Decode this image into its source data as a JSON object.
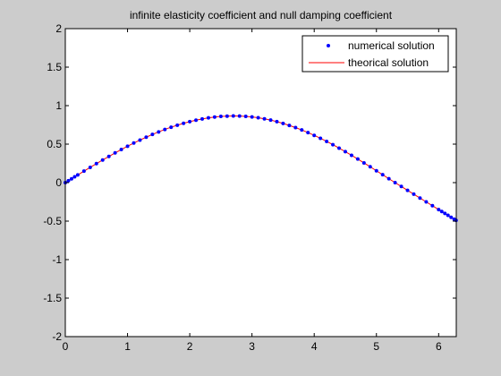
{
  "chart_data": {
    "type": "line",
    "title": "infinite elasticity coefficient and null damping coefficient",
    "xlabel": "",
    "ylabel": "",
    "xlim": [
      0,
      6.2832
    ],
    "ylim": [
      -2,
      2
    ],
    "x_ticks": [
      "0",
      "1",
      "2",
      "3",
      "4",
      "5",
      "6"
    ],
    "y_ticks": [
      "-2",
      "-1.5",
      "-1",
      "-0.5",
      "0",
      "0.5",
      "1",
      "1.5",
      "2"
    ],
    "grid": false,
    "legend_position": "top-right",
    "series": [
      {
        "name": "numerical solution",
        "style": "markers",
        "color": "#0000ff",
        "x": [
          0,
          0.05,
          0.1,
          0.15,
          0.2,
          0.3,
          0.4,
          0.5,
          0.6,
          0.7,
          0.8,
          0.9,
          1.0,
          1.1,
          1.2,
          1.3,
          1.4,
          1.5,
          1.6,
          1.7,
          1.8,
          1.9,
          2.0,
          2.1,
          2.2,
          2.3,
          2.4,
          2.5,
          2.6,
          2.7,
          2.8,
          2.9,
          3.0,
          3.1,
          3.2,
          3.3,
          3.4,
          3.5,
          3.6,
          3.7,
          3.8,
          3.9,
          4.0,
          4.1,
          4.2,
          4.3,
          4.4,
          4.5,
          4.6,
          4.7,
          4.8,
          4.9,
          5.0,
          5.1,
          5.2,
          5.3,
          5.4,
          5.5,
          5.6,
          5.7,
          5.8,
          5.9,
          6.0,
          6.05,
          6.1,
          6.15,
          6.2,
          6.25,
          6.28
        ],
        "y": [
          0,
          0.025,
          0.05,
          0.075,
          0.1,
          0.149,
          0.198,
          0.247,
          0.294,
          0.34,
          0.386,
          0.43,
          0.473,
          0.514,
          0.553,
          0.59,
          0.626,
          0.659,
          0.691,
          0.72,
          0.746,
          0.77,
          0.792,
          0.811,
          0.827,
          0.841,
          0.852,
          0.86,
          0.864,
          0.866,
          0.865,
          0.861,
          0.853,
          0.843,
          0.829,
          0.812,
          0.792,
          0.769,
          0.743,
          0.715,
          0.684,
          0.65,
          0.614,
          0.576,
          0.535,
          0.493,
          0.448,
          0.402,
          0.355,
          0.306,
          0.256,
          0.206,
          0.154,
          0.103,
          0.051,
          0,
          -0.05,
          -0.1,
          -0.15,
          -0.2,
          -0.25,
          -0.3,
          -0.35,
          -0.375,
          -0.4,
          -0.425,
          -0.45,
          -0.475,
          -0.49
        ]
      },
      {
        "name": "theorical solution",
        "style": "line",
        "color": "#ff0000"
      }
    ]
  }
}
